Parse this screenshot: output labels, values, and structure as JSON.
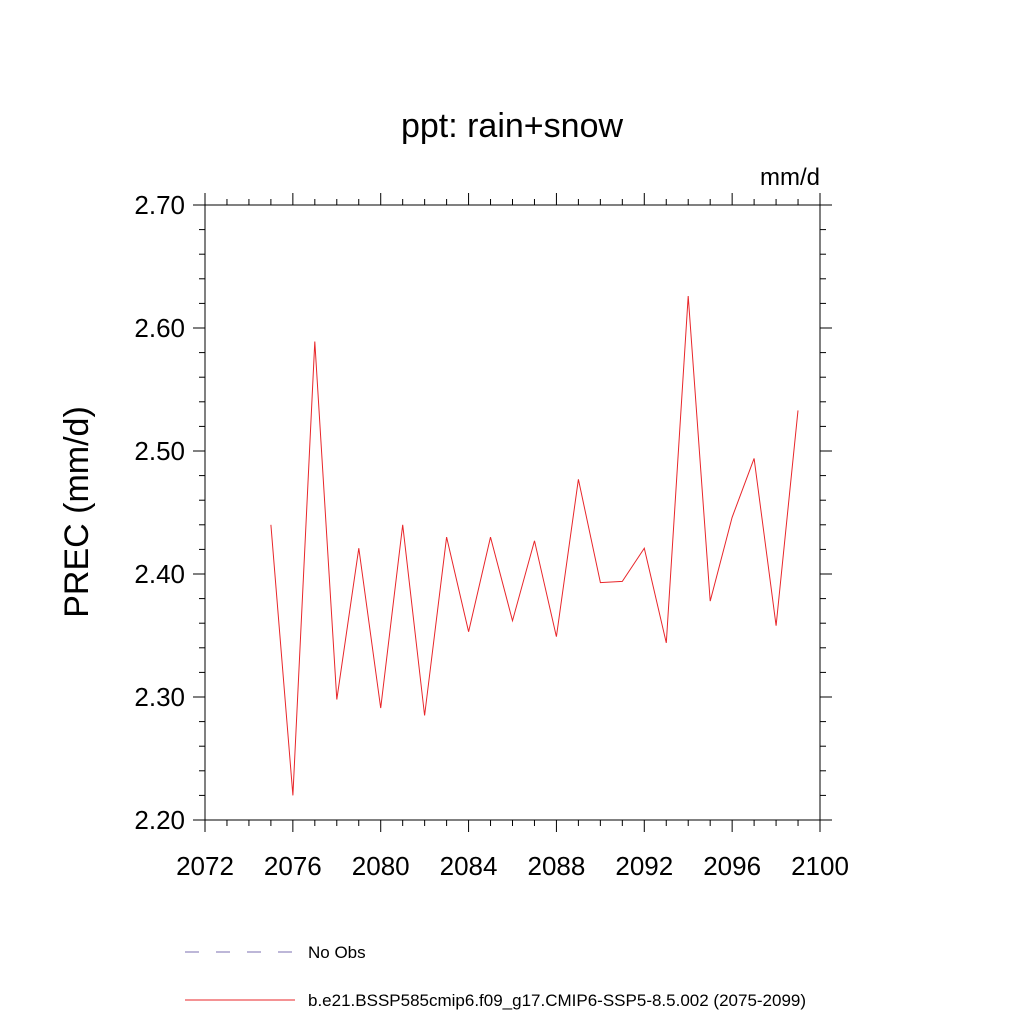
{
  "chart_data": {
    "type": "line",
    "title": "ppt: rain+snow",
    "units_label": "mm/d",
    "ylabel": "PREC  (mm/d)",
    "xlabel": "",
    "xlim": [
      2072,
      2100
    ],
    "ylim": [
      2.2,
      2.7
    ],
    "x_ticks": [
      2072,
      2076,
      2080,
      2084,
      2088,
      2092,
      2096,
      2100
    ],
    "x_tick_labels": [
      "2072",
      "2076",
      "2080",
      "2084",
      "2088",
      "2092",
      "2096",
      "2100"
    ],
    "y_ticks": [
      2.2,
      2.3,
      2.4,
      2.5,
      2.6,
      2.7
    ],
    "y_tick_labels": [
      "2.20",
      "2.30",
      "2.40",
      "2.50",
      "2.60",
      "2.70"
    ],
    "grid": false,
    "legend_position": "bottom",
    "series": [
      {
        "name": "No Obs",
        "color": "#7b6fb0",
        "style": "dashed",
        "x": [],
        "values": []
      },
      {
        "name": "b.e21.BSSP585cmip6.f09_g17.CMIP6-SSP5-8.5.002 (2075-2099)",
        "color": "#e8262a",
        "style": "solid",
        "x": [
          2075,
          2076,
          2077,
          2078,
          2079,
          2080,
          2081,
          2082,
          2083,
          2084,
          2085,
          2086,
          2087,
          2088,
          2089,
          2090,
          2091,
          2092,
          2093,
          2094,
          2095,
          2096,
          2097,
          2098,
          2099
        ],
        "values": [
          2.44,
          2.22,
          2.589,
          2.298,
          2.421,
          2.291,
          2.44,
          2.285,
          2.43,
          2.353,
          2.43,
          2.362,
          2.427,
          2.349,
          2.477,
          2.393,
          2.394,
          2.421,
          2.344,
          2.626,
          2.378,
          2.446,
          2.494,
          2.358,
          2.533
        ]
      }
    ]
  }
}
